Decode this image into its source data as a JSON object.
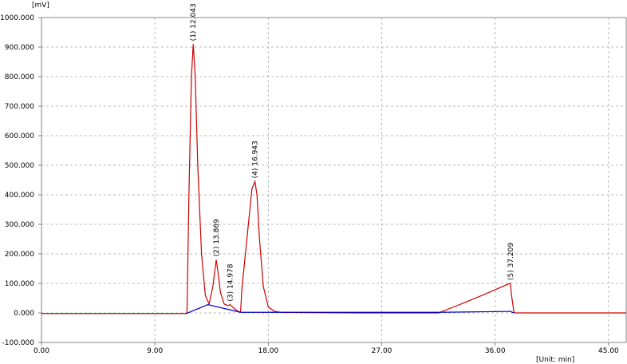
{
  "chart_data": {
    "type": "line",
    "ylabel": "[mV]",
    "xlabel": "[Unit: min]",
    "xlim": [
      0,
      46.4
    ],
    "ylim": [
      -100,
      1000
    ],
    "xticks": [
      {
        "value": 0,
        "label": "0.00"
      },
      {
        "value": 9,
        "label": "9.00"
      },
      {
        "value": 18,
        "label": "18.00"
      },
      {
        "value": 27,
        "label": "27.00"
      },
      {
        "value": 36,
        "label": "36.00"
      },
      {
        "value": 45,
        "label": "45.00"
      }
    ],
    "yticks": [
      {
        "value": -100,
        "label": "-100.000"
      },
      {
        "value": 0,
        "label": "0.000"
      },
      {
        "value": 100,
        "label": "100.000"
      },
      {
        "value": 200,
        "label": "200.000"
      },
      {
        "value": 300,
        "label": "300.000"
      },
      {
        "value": 400,
        "label": "400.000"
      },
      {
        "value": 500,
        "label": "500.000"
      },
      {
        "value": 600,
        "label": "600.000"
      },
      {
        "value": 700,
        "label": "700.000"
      },
      {
        "value": 800,
        "label": "800.000"
      },
      {
        "value": 900,
        "label": "900.000"
      },
      {
        "value": 1000,
        "label": "1000.000"
      }
    ],
    "grid": true,
    "series": [
      {
        "color": "#cc0000",
        "x": [
          0,
          11.5,
          11.55,
          11.7,
          11.9,
          12.043,
          12.2,
          12.4,
          12.7,
          13.0,
          13.3,
          13.6,
          13.869,
          14.0,
          14.2,
          14.5,
          14.8,
          14.978,
          15.2,
          15.6,
          15.8,
          15.9,
          16.3,
          16.7,
          16.943,
          17.1,
          17.3,
          17.6,
          18.0,
          18.5,
          19,
          25,
          31.5,
          33,
          35,
          37.0,
          37.209,
          37.3,
          37.5,
          46.4
        ],
        "values": [
          -2,
          -2,
          5,
          400,
          800,
          910,
          800,
          500,
          200,
          60,
          30,
          90,
          180,
          140,
          70,
          30,
          25,
          28,
          18,
          5,
          3,
          80,
          250,
          420,
          445,
          400,
          250,
          90,
          20,
          5,
          2,
          0,
          0,
          25,
          60,
          97,
          100,
          60,
          0,
          0
        ]
      },
      {
        "color": "#0000cc",
        "x": [
          11.5,
          13.2,
          15.8,
          18,
          31.5,
          37.209,
          37.5
        ],
        "values": [
          -2,
          28,
          2,
          2,
          2,
          5,
          0
        ]
      }
    ],
    "annotations": [
      {
        "text": "(1) 12.043",
        "x": 12.043,
        "y": 910
      },
      {
        "text": "(2) 13.869",
        "x": 13.869,
        "y": 180
      },
      {
        "text": "(3) 14.978",
        "x": 14.978,
        "y": 28
      },
      {
        "text": "(4) 16.943",
        "x": 16.943,
        "y": 445
      },
      {
        "text": "(5) 37.209",
        "x": 37.209,
        "y": 100
      }
    ]
  }
}
